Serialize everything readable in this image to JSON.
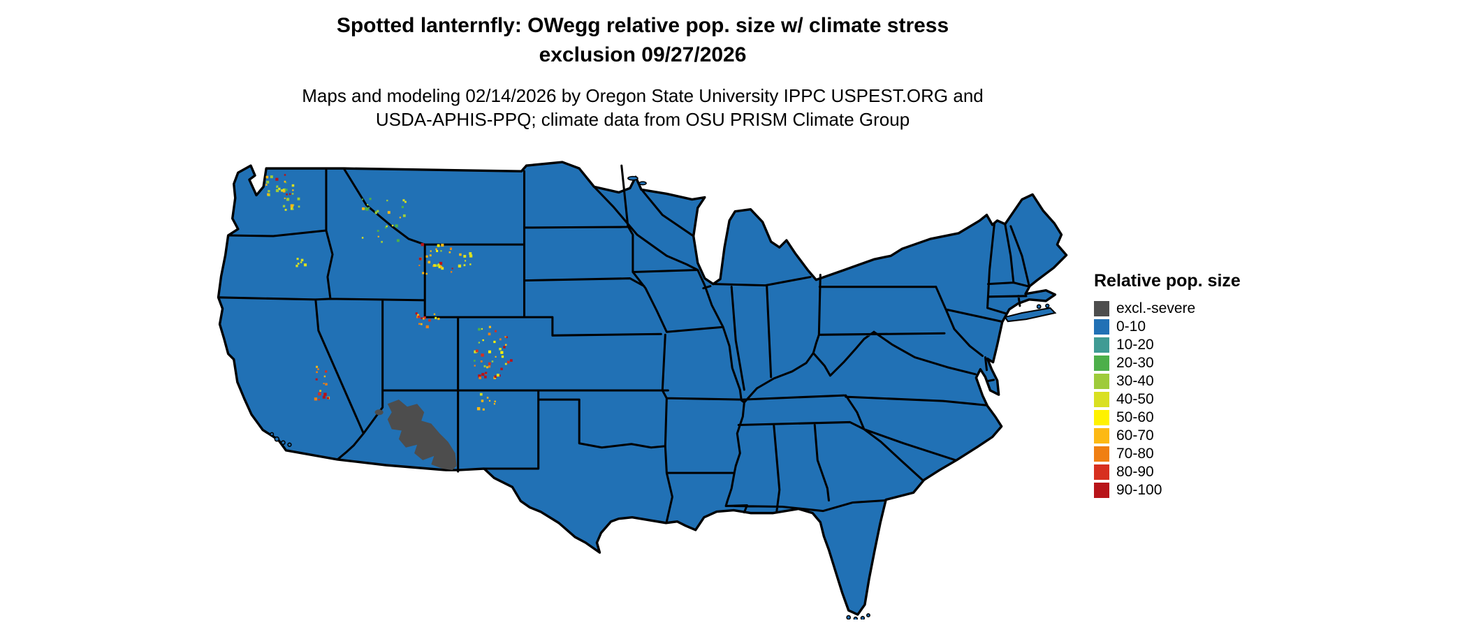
{
  "title": {
    "line1": "Spotted lanternfly: OWegg relative pop. size w/ climate stress",
    "line2": "exclusion 09/27/2026"
  },
  "subtitle": {
    "line1": "Maps and modeling 02/14/2026 by Oregon State University IPPC USPEST.ORG and",
    "line2": "USDA-APHIS-PPQ; climate data from OSU PRISM Climate Group"
  },
  "legend": {
    "title": "Relative pop. size",
    "items": [
      {
        "label": "excl.-severe",
        "color": "#4d4d4d"
      },
      {
        "label": "0-10",
        "color": "#2171b5"
      },
      {
        "label": "10-20",
        "color": "#3f9b94"
      },
      {
        "label": "20-30",
        "color": "#4daf4a"
      },
      {
        "label": "30-40",
        "color": "#9ecb3b"
      },
      {
        "label": "40-50",
        "color": "#d9e021"
      },
      {
        "label": "50-60",
        "color": "#fff200"
      },
      {
        "label": "60-70",
        "color": "#fdb913"
      },
      {
        "label": "70-80",
        "color": "#f07f12"
      },
      {
        "label": "80-90",
        "color": "#d7301f"
      },
      {
        "label": "90-100",
        "color": "#b81419"
      }
    ]
  },
  "map": {
    "fill_range": "0-10",
    "excluded_range": "excl.-severe",
    "border_color": "#000000",
    "background": "#ffffff"
  }
}
